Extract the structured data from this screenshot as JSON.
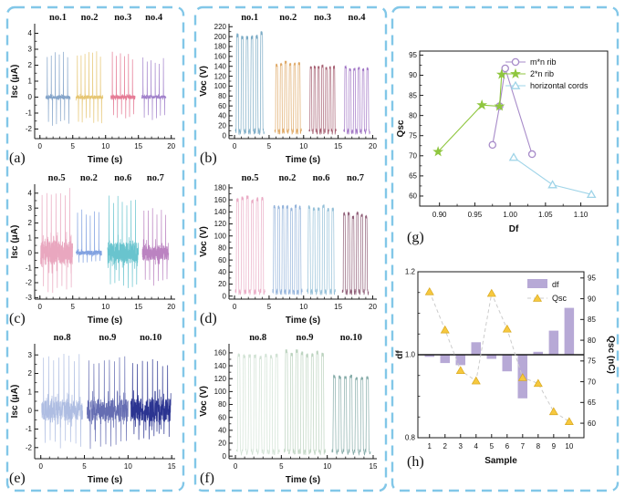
{
  "figure": {
    "background": "#ffffff",
    "frame_color": "#82c7e8"
  },
  "chart_data": [
    {
      "panel": "a",
      "panel_label": "(a)",
      "type": "line",
      "signal": "spike",
      "xlabel": "Time (s)",
      "ylabel": "Isc (μA)",
      "xlim": [
        -0.8,
        20.6
      ],
      "xticks": [
        0,
        5,
        10,
        15,
        20
      ],
      "xtick_format": 0,
      "x_minor_step": 1,
      "ylim": [
        -2.6,
        4.6
      ],
      "yticks": [
        -2,
        -1,
        0,
        1,
        2,
        3,
        4
      ],
      "ytick_format": 0,
      "groups": [
        {
          "label": "no.1",
          "color": "#7d9fc6",
          "t_start": 0.9,
          "t_end": 4.6,
          "peak": 2.9,
          "trough": -1.9,
          "noise": 0.12,
          "pulses": 6
        },
        {
          "label": "no.2",
          "color": "#e5c36c",
          "t_start": 5.5,
          "t_end": 9.6,
          "peak": 2.95,
          "trough": -1.65,
          "noise": 0.12,
          "pulses": 7
        },
        {
          "label": "no.3",
          "color": "#e4748f",
          "t_start": 10.8,
          "t_end": 14.5,
          "peak": 2.85,
          "trough": -1.35,
          "noise": 0.12,
          "pulses": 6
        },
        {
          "label": "no.4",
          "color": "#9d7bc8",
          "t_start": 15.5,
          "t_end": 19.2,
          "peak": 2.5,
          "trough": -1.45,
          "noise": 0.1,
          "pulses": 6
        }
      ]
    },
    {
      "panel": "b",
      "panel_label": "(b)",
      "type": "line",
      "signal": "pulse",
      "xlabel": "Time (s)",
      "ylabel": "Voc (V)",
      "xlim": [
        -0.8,
        20.6
      ],
      "xticks": [
        0,
        5,
        10,
        15,
        20
      ],
      "xtick_format": 0,
      "x_minor_step": 1,
      "ylim": [
        -6,
        226
      ],
      "yticks": [
        0,
        20,
        40,
        60,
        80,
        100,
        120,
        140,
        160,
        180,
        200,
        220
      ],
      "ytick_format": 0,
      "groups": [
        {
          "label": "no.1",
          "color": "#74a7c2",
          "t_start": 0.1,
          "t_end": 4.3,
          "peak": 211,
          "pulses": 6
        },
        {
          "label": "no.2",
          "color": "#dda45f",
          "t_start": 5.8,
          "t_end": 9.7,
          "peak": 152,
          "pulses": 6
        },
        {
          "label": "no.3",
          "color": "#a2596c",
          "t_start": 10.8,
          "t_end": 14.7,
          "peak": 143,
          "pulses": 7
        },
        {
          "label": "no.4",
          "color": "#9c6fc2",
          "t_start": 15.8,
          "t_end": 19.6,
          "peak": 142,
          "pulses": 6
        }
      ]
    },
    {
      "panel": "c",
      "panel_label": "(c)",
      "type": "line",
      "signal": "spike",
      "xlabel": "Time (s)",
      "ylabel": "Isc (μA)",
      "xlim": [
        -0.8,
        20.6
      ],
      "xticks": [
        0,
        5,
        10,
        15,
        20
      ],
      "xtick_format": 0,
      "x_minor_step": 1,
      "ylim": [
        -3.1,
        4.6
      ],
      "yticks": [
        -3,
        -2,
        -1,
        0,
        1,
        2,
        3,
        4
      ],
      "ytick_format": 0,
      "groups": [
        {
          "label": "no.5",
          "color": "#e8a2bc",
          "t_start": 0.1,
          "t_end": 5.0,
          "peak": 4.4,
          "trough": -2.7,
          "noise": 0.8,
          "pulses": 7
        },
        {
          "label": "no.2",
          "color": "#7b9ddf",
          "t_start": 5.5,
          "t_end": 9.4,
          "peak": 3.0,
          "trough": -0.7,
          "noise": 0.16,
          "pulses": 6
        },
        {
          "label": "no.6",
          "color": "#61c1cb",
          "t_start": 10.3,
          "t_end": 15.0,
          "peak": 3.85,
          "trough": -2.4,
          "noise": 0.72,
          "pulses": 7
        },
        {
          "label": "no.7",
          "color": "#b77cbe",
          "t_start": 15.6,
          "t_end": 19.6,
          "peak": 3.0,
          "trough": -2.3,
          "noise": 0.52,
          "pulses": 6
        }
      ]
    },
    {
      "panel": "d",
      "panel_label": "(d)",
      "type": "line",
      "signal": "pulse",
      "xlabel": "Time (s)",
      "ylabel": "Voc (V)",
      "xlim": [
        -0.8,
        20.6
      ],
      "xticks": [
        0,
        5,
        10,
        15,
        20
      ],
      "xtick_format": 0,
      "x_minor_step": 1,
      "ylim": [
        -5,
        186
      ],
      "yticks": [
        0,
        20,
        40,
        60,
        80,
        100,
        120,
        140,
        160,
        180
      ],
      "ytick_format": 0,
      "groups": [
        {
          "label": "no.5",
          "color": "#e9a9c3",
          "t_start": 0.1,
          "t_end": 4.4,
          "peak": 168,
          "pulses": 6
        },
        {
          "label": "no.2",
          "color": "#8fb0d9",
          "t_start": 5.5,
          "t_end": 9.8,
          "peak": 152,
          "pulses": 7
        },
        {
          "label": "no.6",
          "color": "#8fbdd6",
          "t_start": 10.5,
          "t_end": 14.6,
          "peak": 152,
          "pulses": 6
        },
        {
          "label": "no.7",
          "color": "#8a5671",
          "t_start": 15.6,
          "t_end": 19.4,
          "peak": 140,
          "pulses": 6
        }
      ]
    },
    {
      "panel": "e",
      "panel_label": "(e)",
      "type": "line",
      "signal": "spike",
      "xlabel": "Time (s)",
      "ylabel": "Isc (μA)",
      "xlim": [
        -0.7,
        15.4
      ],
      "xticks": [
        0,
        5,
        10,
        15
      ],
      "xtick_format": 0,
      "x_minor_step": 1,
      "ylim": [
        -2.6,
        3.6
      ],
      "yticks": [
        -2,
        -1,
        0,
        1,
        2,
        3
      ],
      "ytick_format": 0,
      "groups": [
        {
          "label": "no.8",
          "color": "#aab9e0",
          "t_start": 0.1,
          "t_end": 4.8,
          "peak": 3.1,
          "trough": -2.1,
          "noise": 0.55,
          "pulses": 8
        },
        {
          "label": "no.9",
          "color": "#5d65ae",
          "t_start": 5.3,
          "t_end": 10.0,
          "peak": 3.05,
          "trough": -2.1,
          "noise": 0.6,
          "pulses": 8
        },
        {
          "label": "no.10",
          "color": "#20298b",
          "t_start": 10.3,
          "t_end": 14.9,
          "peak": 2.8,
          "trough": -1.6,
          "noise": 0.65,
          "pulses": 8
        }
      ]
    },
    {
      "panel": "f",
      "panel_label": "(f)",
      "type": "line",
      "signal": "pulse",
      "xlabel": "Time (s)",
      "ylabel": "Voc (V)",
      "xlim": [
        -0.7,
        15.4
      ],
      "xticks": [
        0,
        5,
        10,
        15
      ],
      "xtick_format": 0,
      "x_minor_step": 1,
      "ylim": [
        -4,
        174
      ],
      "yticks": [
        0,
        20,
        40,
        60,
        80,
        100,
        120,
        140,
        160
      ],
      "ytick_format": 0,
      "groups": [
        {
          "label": "no.8",
          "color": "#cfe0d2",
          "t_start": 0.1,
          "t_end": 4.8,
          "peak": 160,
          "pulses": 8
        },
        {
          "label": "no.9",
          "color": "#b8d1bc",
          "t_start": 5.3,
          "t_end": 9.8,
          "peak": 166,
          "pulses": 8
        },
        {
          "label": "no.10",
          "color": "#7fa8a4",
          "t_start": 10.5,
          "t_end": 14.7,
          "peak": 126,
          "pulses": 7
        }
      ]
    },
    {
      "panel": "g",
      "panel_label": "(g)",
      "type": "scatter",
      "xlabel": "Df",
      "ylabel": "Qsc",
      "xlim": [
        0.872,
        1.138
      ],
      "xticks": [
        0.9,
        0.95,
        1.0,
        1.05,
        1.1
      ],
      "xtick_format": 2,
      "ylim": [
        57.5,
        96
      ],
      "yticks": [
        60,
        65,
        70,
        75,
        80,
        85,
        90,
        95
      ],
      "ytick_format": 0,
      "legend_position": "top-right",
      "series": [
        {
          "name": "m*n rib",
          "marker": "circle",
          "color": "#a78bc9",
          "points": [
            [
              0.975,
              72.7
            ],
            [
              0.985,
              82.3
            ],
            [
              0.993,
              91.7
            ],
            [
              1.031,
              70.4
            ]
          ]
        },
        {
          "name": "2*n rib",
          "marker": "star",
          "color": "#8fc63f",
          "points": [
            [
              0.898,
              71.0
            ],
            [
              0.96,
              82.6
            ],
            [
              0.985,
              82.3
            ],
            [
              0.988,
              90.2
            ]
          ]
        },
        {
          "name": "horizontal cords",
          "marker": "triangle",
          "color": "#9fd4e8",
          "points": [
            [
              1.005,
              69.6
            ],
            [
              1.06,
              62.8
            ],
            [
              1.115,
              60.4
            ]
          ]
        }
      ]
    },
    {
      "panel": "h",
      "panel_label": "(h)",
      "type": "bar",
      "xlabel": "Sample",
      "ylabel_left": "df",
      "ylabel_right": "Qsc (nC)",
      "categories": [
        1,
        2,
        3,
        4,
        5,
        6,
        7,
        8,
        9,
        10
      ],
      "ylim_left": [
        0.8,
        1.2
      ],
      "yticks_left": [
        0.8,
        1.0,
        1.2
      ],
      "ytick_left_format": 1,
      "ylim_right": [
        56.5,
        96.5
      ],
      "yticks_right": [
        60,
        65,
        70,
        75,
        80,
        85,
        90,
        95
      ],
      "ytick_right_format": 0,
      "bar_series": {
        "name": "df",
        "color": "#b7a9d6",
        "baseline": 1.0,
        "values": [
          0.995,
          0.98,
          0.975,
          1.03,
          0.99,
          0.96,
          0.895,
          1.007,
          1.058,
          1.113
        ]
      },
      "line_series": {
        "name": "Qsc",
        "color": "#f6c83e",
        "dash_color": "#cccccc",
        "values": [
          91.7,
          82.5,
          72.7,
          70.2,
          91.3,
          82.7,
          71.0,
          69.6,
          62.8,
          60.4
        ]
      },
      "legend": [
        "df",
        "Qsc"
      ]
    }
  ]
}
